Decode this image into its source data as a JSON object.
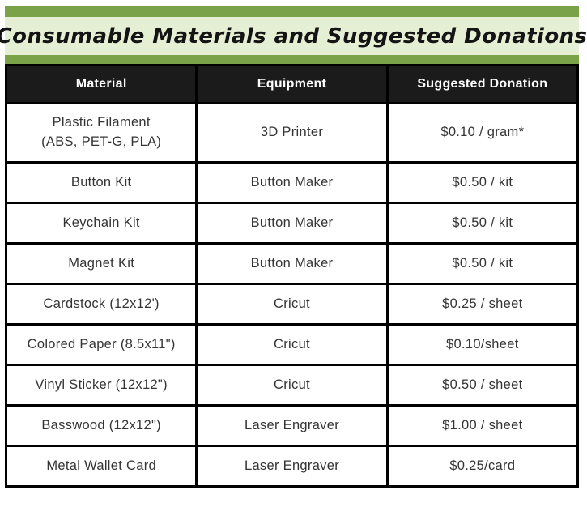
{
  "banner": {
    "title": "Consumable Materials and Suggested Donations",
    "bar_color": "#7aa248",
    "band_color": "#e4efd4"
  },
  "table": {
    "header_bg": "#1b1b1b",
    "border_color": "#000000",
    "headers": [
      "Material",
      "Equipment",
      "Suggested Donation"
    ],
    "rows": [
      {
        "material": "Plastic Filament\n(ABS, PET-G, PLA)",
        "equipment": "3D Printer",
        "donation": "$0.10 / gram*"
      },
      {
        "material": "Button Kit",
        "equipment": "Button Maker",
        "donation": "$0.50 / kit"
      },
      {
        "material": "Keychain Kit",
        "equipment": "Button Maker",
        "donation": "$0.50 / kit"
      },
      {
        "material": "Magnet Kit",
        "equipment": "Button Maker",
        "donation": "$0.50 / kit"
      },
      {
        "material": "Cardstock (12x12')",
        "equipment": "Cricut",
        "donation": "$0.25 / sheet"
      },
      {
        "material": "Colored Paper (8.5x11\")",
        "equipment": "Cricut",
        "donation": "$0.10/sheet"
      },
      {
        "material": "Vinyl Sticker (12x12\")",
        "equipment": "Cricut",
        "donation": "$0.50 / sheet"
      },
      {
        "material": "Basswood (12x12\")",
        "equipment": "Laser Engraver",
        "donation": "$1.00 / sheet"
      },
      {
        "material": "Metal Wallet Card",
        "equipment": "Laser Engraver",
        "donation": "$0.25/card"
      }
    ]
  }
}
